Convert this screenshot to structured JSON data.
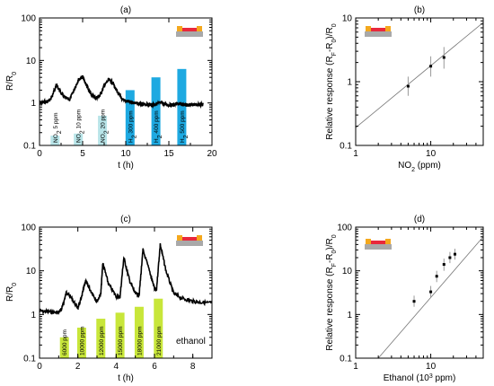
{
  "chart_data": [
    {
      "id": "a",
      "panel_label": "(a)",
      "type": "line",
      "xlabel": "t (h)",
      "ylabel": "R/R",
      "ylabel_sub": "0",
      "xlim": [
        0,
        20
      ],
      "ylim": [
        0.1,
        100
      ],
      "yscale": "log",
      "xticks": [
        0,
        5,
        10,
        15,
        20
      ],
      "yticks": [
        0.1,
        1,
        10,
        100
      ],
      "ytick_labels": [
        "0.1",
        "1",
        "10",
        "100"
      ],
      "series": [
        {
          "x": [
            0,
            0.5,
            1.0,
            1.4,
            1.7,
            2.0,
            2.5,
            3.0,
            3.5,
            4.0,
            4.5,
            5.0,
            5.3,
            5.7,
            6.0,
            6.5,
            7.0,
            7.5,
            8.0,
            8.5,
            9.0,
            9.5,
            10.0,
            10.5,
            11.0,
            11.5,
            12.0,
            12.5,
            13.0,
            13.5,
            14.0,
            14.5,
            15.0,
            15.5,
            16.0,
            16.5,
            17.0,
            17.5,
            18.0,
            18.5,
            19.0
          ],
          "y": [
            1.0,
            1.05,
            1.1,
            1.3,
            2.0,
            2.6,
            1.7,
            1.3,
            1.2,
            2.0,
            3.5,
            4.2,
            3.0,
            2.0,
            1.6,
            1.3,
            1.5,
            2.5,
            3.5,
            3.0,
            1.8,
            1.3,
            1.1,
            1.05,
            1.0,
            0.95,
            0.9,
            0.92,
            0.9,
            0.95,
            1.0,
            0.95,
            0.9,
            0.9,
            0.95,
            0.92,
            0.9,
            0.9,
            0.92,
            0.92,
            0.92
          ]
        }
      ],
      "bars": [
        {
          "x": 1.8,
          "value": 0.17,
          "label": "NO",
          "sub": "2",
          "rest": " 5 ppm",
          "color": "#b8e4e8"
        },
        {
          "x": 4.5,
          "value": 0.19,
          "label": "NO",
          "sub": "2",
          "rest": " 10 ppm",
          "color": "#b8e4e8"
        },
        {
          "x": 7.3,
          "value": 0.5,
          "label": "NO",
          "sub": "2",
          "rest": " 20 ppm",
          "color": "#b8e4e8"
        },
        {
          "x": 10.5,
          "value": 2.0,
          "label": "H",
          "sub": "2",
          "rest": " 300 ppm",
          "color": "#1ea9e1"
        },
        {
          "x": 13.5,
          "value": 4.0,
          "label": "H",
          "sub": "2",
          "rest": " 400 ppm",
          "color": "#1ea9e1"
        },
        {
          "x": 16.5,
          "value": 6.3,
          "label": "H",
          "sub": "2",
          "rest": " 500 ppm",
          "color": "#1ea9e1"
        }
      ]
    },
    {
      "id": "b",
      "panel_label": "(b)",
      "type": "scatter",
      "xlabel": "NO",
      "xlabel_sub": "2",
      "xlabel_rest": " (ppm)",
      "ylabel": "Relative response (R",
      "xscale": "log",
      "yscale": "log",
      "xlim": [
        1,
        50
      ],
      "ylim": [
        0.1,
        10
      ],
      "xticks": [
        1,
        10
      ],
      "xtick_labels": [
        "1",
        "10"
      ],
      "yticks": [
        0.1,
        1,
        10
      ],
      "ytick_labels": [
        "0.1",
        "1",
        "10"
      ],
      "points": [
        {
          "x": 5,
          "y": 0.85,
          "err": [
            0.6,
            1.2
          ]
        },
        {
          "x": 10,
          "y": 1.75,
          "err": [
            1.2,
            2.5
          ]
        },
        {
          "x": 15,
          "y": 2.4,
          "err": [
            1.6,
            3.5
          ]
        }
      ],
      "fit_line": {
        "x": [
          1,
          50
        ],
        "y": [
          0.19,
          8.5
        ]
      }
    },
    {
      "id": "c",
      "panel_label": "(c)",
      "type": "line",
      "xlabel": "t (h)",
      "ylabel": "R/R",
      "ylabel_sub": "0",
      "xlim": [
        0,
        9
      ],
      "ylim": [
        0.1,
        100
      ],
      "yscale": "log",
      "xticks": [
        0,
        2,
        4,
        6,
        8
      ],
      "yticks": [
        0.1,
        1,
        10,
        100
      ],
      "ytick_labels": [
        "0.1",
        "1",
        "10",
        "100"
      ],
      "annotation": "ethanol",
      "series": [
        {
          "x": [
            0,
            0.5,
            1.0,
            1.2,
            1.4,
            1.6,
            2.0,
            2.2,
            2.4,
            2.6,
            3.0,
            3.2,
            3.3,
            3.6,
            4.0,
            4.2,
            4.4,
            4.7,
            5.0,
            5.2,
            5.4,
            5.8,
            6.0,
            6.1,
            6.3,
            6.6,
            7.0,
            7.5,
            8.0,
            8.5,
            9.0
          ],
          "y": [
            1.2,
            1.15,
            1.1,
            1.5,
            3.2,
            2.6,
            1.4,
            2.5,
            6.0,
            4.0,
            2.0,
            3.0,
            15,
            5.0,
            2.6,
            2.5,
            20,
            6.0,
            3.0,
            2.8,
            30,
            8.0,
            4.0,
            3.5,
            40,
            10,
            3.0,
            2.3,
            2.0,
            1.9,
            1.8
          ]
        }
      ],
      "bars": [
        {
          "x": 1.3,
          "value": 0.3,
          "label": "6000 ppm",
          "color": "#c8e63a"
        },
        {
          "x": 2.2,
          "value": 0.5,
          "label": "10000 ppm",
          "color": "#c8e63a"
        },
        {
          "x": 3.2,
          "value": 0.8,
          "label": "12000 ppm",
          "color": "#c8e63a"
        },
        {
          "x": 4.2,
          "value": 1.1,
          "label": "15000 ppm",
          "color": "#c8e63a"
        },
        {
          "x": 5.2,
          "value": 1.5,
          "label": "18000 ppm",
          "color": "#c8e63a"
        },
        {
          "x": 6.2,
          "value": 2.3,
          "label": "21000 ppm",
          "color": "#c8e63a"
        }
      ]
    },
    {
      "id": "d",
      "panel_label": "(d)",
      "type": "scatter",
      "xlabel": "Ethanol (10",
      "xlabel_sup": "3",
      "xlabel_rest": " ppm)",
      "ylabel": "Relative response (R",
      "xscale": "log",
      "yscale": "log",
      "xlim": [
        1,
        50
      ],
      "ylim": [
        0.1,
        100
      ],
      "xticks": [
        1,
        10
      ],
      "xtick_labels": [
        "1",
        "10"
      ],
      "yticks": [
        0.1,
        1,
        10,
        100
      ],
      "ytick_labels": [
        "0.1",
        "1",
        "10",
        "100"
      ],
      "points": [
        {
          "x": 6,
          "y": 2.0,
          "err": [
            1.5,
            2.7
          ]
        },
        {
          "x": 10,
          "y": 3.3,
          "err": [
            2.5,
            4.5
          ]
        },
        {
          "x": 12,
          "y": 7.5,
          "err": [
            5.5,
            10
          ]
        },
        {
          "x": 15,
          "y": 14,
          "err": [
            10,
            19
          ]
        },
        {
          "x": 18,
          "y": 20,
          "err": [
            15,
            27
          ]
        },
        {
          "x": 21,
          "y": 24,
          "err": [
            18,
            32
          ]
        }
      ],
      "fit_line": {
        "x": [
          2,
          50
        ],
        "y": [
          0.1,
          60
        ]
      }
    }
  ],
  "yresp_label_parts": [
    "Relative response (R",
    "F",
    "-R",
    "0",
    ")/R",
    "0"
  ],
  "icon_colors": {
    "substrate": "#a9a9a9",
    "film": "#e8283c",
    "electrode": "#f4a81d"
  }
}
